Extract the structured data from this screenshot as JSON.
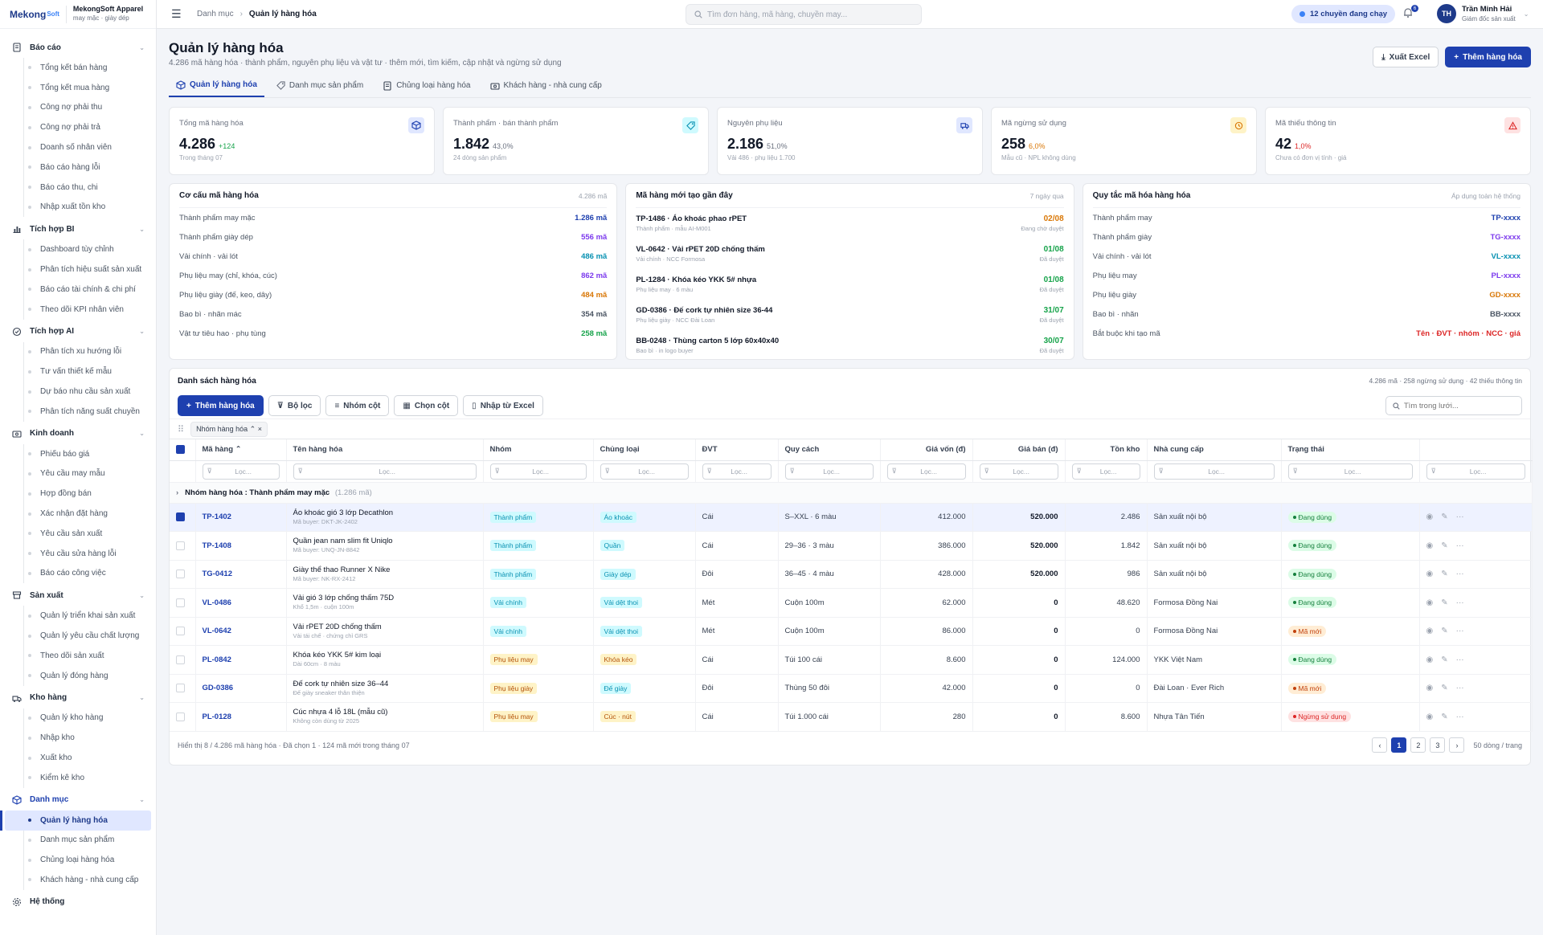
{
  "brand": {
    "logo_main": "Mekong",
    "logo_sub": "Soft",
    "company": "MekongSoft Apparel",
    "tagline": "may mặc · giày dép"
  },
  "sidebar": [
    {
      "label": "Báo cáo",
      "icon": "report-icon",
      "items": [
        "Tổng kết bán hàng",
        "Tổng kết mua hàng",
        "Công nợ phải thu",
        "Công nợ phải trả",
        "Doanh số nhân viên",
        "Báo cáo hàng lỗi",
        "Báo cáo thu, chi",
        "Nhập xuất tồn kho"
      ]
    },
    {
      "label": "Tích hợp BI",
      "icon": "chart-icon",
      "items": [
        "Dashboard tùy chỉnh",
        "Phân tích hiệu suất sản xuất",
        "Báo cáo tài chính & chi phí",
        "Theo dõi KPI nhân viên"
      ]
    },
    {
      "label": "Tích hợp AI",
      "icon": "ai-icon",
      "items": [
        "Phân tích xu hướng lỗi",
        "Tư vấn thiết kế mẫu",
        "Dự báo nhu cầu sản xuất",
        "Phân tích năng suất chuyền"
      ]
    },
    {
      "label": "Kinh doanh",
      "icon": "business-icon",
      "items": [
        "Phiếu báo giá",
        "Yêu cầu may mẫu",
        "Hợp đồng bán",
        "Xác nhận đặt hàng",
        "Yêu cầu sản xuất",
        "Yêu cầu sửa hàng lỗi",
        "Báo cáo công việc"
      ]
    },
    {
      "label": "Sản xuất",
      "icon": "factory-icon",
      "items": [
        "Quản lý triển khai sản xuất",
        "Quản lý yêu cầu chất lượng",
        "Theo dõi sản xuất",
        "Quản lý đóng hàng"
      ]
    },
    {
      "label": "Kho hàng",
      "icon": "warehouse-icon",
      "items": [
        "Quản lý kho hàng",
        "Nhập kho",
        "Xuất kho",
        "Kiểm kê kho"
      ]
    },
    {
      "label": "Danh mục",
      "icon": "box-icon",
      "active": true,
      "items": [
        "Quản lý hàng hóa",
        "Danh mục sản phẩm",
        "Chủng loại hàng hóa",
        "Khách hàng - nhà cung cấp"
      ]
    },
    {
      "label": "Hệ thống",
      "icon": "gear-icon",
      "items": []
    }
  ],
  "topbar": {
    "breadcrumb_root": "Danh mục",
    "breadcrumb_current": "Quản lý hàng hóa",
    "search_placeholder": "Tìm đơn hàng, mã hàng, chuyền may...",
    "trips": "12 chuyền đang chạy",
    "notif_count": "6",
    "user_initials": "TH",
    "user_name": "Trần Minh Hải",
    "user_role": "Giám đốc sản xuất"
  },
  "page": {
    "title": "Quản lý hàng hóa",
    "subtitle": "4.286 mã hàng hóa · thành phẩm, nguyên phụ liệu và vật tư · thêm mới, tìm kiếm, cập nhật và ngừng sử dụng",
    "export": "Xuất Excel",
    "add": "Thêm hàng hóa"
  },
  "tabs": [
    "Quản lý hàng hóa",
    "Danh mục sản phẩm",
    "Chủng loại hàng hóa",
    "Khách hàng - nhà cung cấp"
  ],
  "kpis": [
    {
      "label": "Tổng mã hàng hóa",
      "value": "4.286",
      "delta": "+124",
      "delta_color": "#16a34a",
      "sub": "Trong tháng 07",
      "icon": "box-icon",
      "icon_color": "#1e40af",
      "icon_bg": "#e0e7ff"
    },
    {
      "label": "Thành phẩm · bán thành phẩm",
      "value": "1.842",
      "delta": "43,0%",
      "delta_color": "#6b7280",
      "sub": "24 dòng sản phẩm",
      "icon": "tag-icon",
      "icon_color": "#0891b2",
      "icon_bg": "#cffafe"
    },
    {
      "label": "Nguyên phụ liệu",
      "value": "2.186",
      "delta": "51,0%",
      "delta_color": "#6b7280",
      "sub": "Vải 486 · phụ liệu 1.700",
      "icon": "truck-icon",
      "icon_color": "#1e40af",
      "icon_bg": "#e0e7ff"
    },
    {
      "label": "Mã ngừng sử dụng",
      "value": "258",
      "delta": "6,0%",
      "delta_color": "#d97706",
      "sub": "Mẫu cũ · NPL không dùng",
      "icon": "clock-icon",
      "icon_color": "#d97706",
      "icon_bg": "#fef3c7"
    },
    {
      "label": "Mã thiếu thông tin",
      "value": "42",
      "delta": "1,0%",
      "delta_color": "#dc2626",
      "sub": "Chưa có đơn vị tính · giá",
      "icon": "warning-icon",
      "icon_color": "#dc2626",
      "icon_bg": "#fee2e2"
    }
  ],
  "structure": {
    "title": "Cơ cấu mã hàng hóa",
    "count": "4.286 mã",
    "rows": [
      {
        "label": "Thành phẩm may mặc",
        "value": "1.286 mã",
        "color": "#1e40af"
      },
      {
        "label": "Thành phẩm giày dép",
        "value": "556 mã",
        "color": "#7c3aed"
      },
      {
        "label": "Vải chính · vải lót",
        "value": "486 mã",
        "color": "#0891b2"
      },
      {
        "label": "Phụ liệu may (chỉ, khóa, cúc)",
        "value": "862 mã",
        "color": "#7c3aed"
      },
      {
        "label": "Phụ liệu giày (đế, keo, dây)",
        "value": "484 mã",
        "color": "#d97706"
      },
      {
        "label": "Bao bì · nhãn mác",
        "value": "354 mã",
        "color": "#4b5563"
      },
      {
        "label": "Vật tư tiêu hao · phụ tùng",
        "value": "258 mã",
        "color": "#16a34a"
      }
    ]
  },
  "recent": {
    "title": "Mã hàng mới tạo gần đây",
    "period": "7 ngày qua",
    "rows": [
      {
        "name": "TP-1486 · Áo khoác phao rPET",
        "sub": "Thành phẩm · mẫu AI-M001",
        "date": "02/08",
        "status": "Đang chờ duyệt",
        "color": "#d97706"
      },
      {
        "name": "VL-0642 · Vải rPET 20D chống thấm",
        "sub": "Vải chính · NCC Formosa",
        "date": "01/08",
        "status": "Đã duyệt",
        "color": "#16a34a"
      },
      {
        "name": "PL-1284 · Khóa kéo YKK 5# nhựa",
        "sub": "Phụ liệu may · 6 màu",
        "date": "01/08",
        "status": "Đã duyệt",
        "color": "#16a34a"
      },
      {
        "name": "GD-0386 · Đế cork tự nhiên size 36-44",
        "sub": "Phụ liệu giày · NCC Đài Loan",
        "date": "31/07",
        "status": "Đã duyệt",
        "color": "#16a34a"
      },
      {
        "name": "BB-0248 · Thùng carton 5 lớp 60x40x40",
        "sub": "Bao bì · in logo buyer",
        "date": "30/07",
        "status": "Đã duyệt",
        "color": "#16a34a"
      }
    ]
  },
  "rules": {
    "title": "Quy tắc mã hóa hàng hóa",
    "scope": "Áp dụng toàn hệ thống",
    "rows": [
      {
        "label": "Thành phẩm may",
        "value": "TP-xxxx",
        "color": "#1e40af"
      },
      {
        "label": "Thành phẩm giày",
        "value": "TG-xxxx",
        "color": "#7c3aed"
      },
      {
        "label": "Vải chính · vải lót",
        "value": "VL-xxxx",
        "color": "#0891b2"
      },
      {
        "label": "Phụ liệu may",
        "value": "PL-xxxx",
        "color": "#7c3aed"
      },
      {
        "label": "Phụ liệu giày",
        "value": "GD-xxxx",
        "color": "#d97706"
      },
      {
        "label": "Bao bì · nhãn",
        "value": "BB-xxxx",
        "color": "#4b5563"
      },
      {
        "label": "Bắt buộc khi tạo mã",
        "value": "Tên · ĐVT · nhóm · NCC · giá",
        "color": "#dc2626"
      }
    ]
  },
  "table": {
    "title": "Danh sách hàng hóa",
    "summary": "4.286 mã · 258 ngừng sử dụng · 42 thiếu thông tin",
    "add": "Thêm hàng hóa",
    "filter": "Bộ lọc",
    "group": "Nhóm cột",
    "columns_btn": "Chọn cột",
    "import": "Nhập từ Excel",
    "search_placeholder": "Tìm trong lưới...",
    "chip": "Nhóm hàng hóa",
    "filter_placeholder": "Lọc...",
    "columns": [
      "Mã hàng",
      "Tên hàng hóa",
      "Nhóm",
      "Chủng loại",
      "ĐVT",
      "Quy cách",
      "Giá vốn (đ)",
      "Giá bán (đ)",
      "Tồn kho",
      "Nhà cung cấp",
      "Trạng thái"
    ],
    "group_label": "Nhóm hàng hóa",
    "group_value": "Thành phẩm may mặc",
    "group_count": "(1.286 mã)",
    "rows": [
      {
        "code": "TP-1402",
        "name": "Áo khoác gió 3 lớp Decathlon",
        "sub": "Mã buyer: DKT-JK-2402",
        "group": "Thành phẩm",
        "gc": "#0891b2",
        "gb": "#cffafe",
        "type": "Áo khoác",
        "tc": "#0891b2",
        "tb": "#cffafe",
        "unit": "Cái",
        "spec": "S–XXL · 6 màu",
        "cost": "412.000",
        "price": "520.000",
        "stock": "2.486",
        "supplier": "Sản xuất nội bộ",
        "status": "Đang dùng",
        "sc": "#15803d",
        "sb": "#dcfce7",
        "sel": true
      },
      {
        "code": "TP-1408",
        "name": "Quần jean nam slim fit Uniqlo",
        "sub": "Mã buyer: UNQ-JN-8842",
        "group": "Thành phẩm",
        "gc": "#0891b2",
        "gb": "#cffafe",
        "type": "Quần",
        "tc": "#0891b2",
        "tb": "#cffafe",
        "unit": "Cái",
        "spec": "29–36 · 3 màu",
        "cost": "386.000",
        "price": "520.000",
        "stock": "1.842",
        "supplier": "Sản xuất nội bộ",
        "status": "Đang dùng",
        "sc": "#15803d",
        "sb": "#dcfce7"
      },
      {
        "code": "TG-0412",
        "name": "Giày thể thao Runner X Nike",
        "sub": "Mã buyer: NK-RX-2412",
        "group": "Thành phẩm",
        "gc": "#0891b2",
        "gb": "#cffafe",
        "type": "Giày dép",
        "tc": "#0891b2",
        "tb": "#cffafe",
        "unit": "Đôi",
        "spec": "36–45 · 4 màu",
        "cost": "428.000",
        "price": "520.000",
        "stock": "986",
        "supplier": "Sản xuất nội bộ",
        "status": "Đang dùng",
        "sc": "#15803d",
        "sb": "#dcfce7"
      },
      {
        "code": "VL-0486",
        "name": "Vải gió 3 lớp chống thấm 75D",
        "sub": "Khổ 1,5m · cuộn 100m",
        "group": "Vải chính",
        "gc": "#0891b2",
        "gb": "#cffafe",
        "type": "Vải dệt thoi",
        "tc": "#0891b2",
        "tb": "#cffafe",
        "unit": "Mét",
        "spec": "Cuộn 100m",
        "cost": "62.000",
        "price": "0",
        "stock": "48.620",
        "supplier": "Formosa Đồng Nai",
        "status": "Đang dùng",
        "sc": "#15803d",
        "sb": "#dcfce7"
      },
      {
        "code": "VL-0642",
        "name": "Vải rPET 20D chống thấm",
        "sub": "Vải tái chế · chứng chỉ GRS",
        "group": "Vải chính",
        "gc": "#0891b2",
        "gb": "#cffafe",
        "type": "Vải dệt thoi",
        "tc": "#0891b2",
        "tb": "#cffafe",
        "unit": "Mét",
        "spec": "Cuộn 100m",
        "cost": "86.000",
        "price": "0",
        "stock": "0",
        "supplier": "Formosa Đồng Nai",
        "status": "Mã mới",
        "sc": "#c2410c",
        "sb": "#ffedd5"
      },
      {
        "code": "PL-0842",
        "name": "Khóa kéo YKK 5# kim loại",
        "sub": "Dài 60cm · 8 màu",
        "group": "Phụ liệu may",
        "gc": "#b45309",
        "gb": "#fef3c7",
        "type": "Khóa kéo",
        "tc": "#b45309",
        "tb": "#fef3c7",
        "unit": "Cái",
        "spec": "Túi 100 cái",
        "cost": "8.600",
        "price": "0",
        "stock": "124.000",
        "supplier": "YKK Việt Nam",
        "status": "Đang dùng",
        "sc": "#15803d",
        "sb": "#dcfce7"
      },
      {
        "code": "GD-0386",
        "name": "Đế cork tự nhiên size 36–44",
        "sub": "Đế giày sneaker thân thiện",
        "group": "Phụ liệu giày",
        "gc": "#b45309",
        "gb": "#fef3c7",
        "type": "Đế giày",
        "tc": "#0891b2",
        "tb": "#cffafe",
        "unit": "Đôi",
        "spec": "Thùng 50 đôi",
        "cost": "42.000",
        "price": "0",
        "stock": "0",
        "supplier": "Đài Loan · Ever Rich",
        "status": "Mã mới",
        "sc": "#c2410c",
        "sb": "#ffedd5"
      },
      {
        "code": "PL-0128",
        "name": "Cúc nhựa 4 lỗ 18L (mẫu cũ)",
        "sub": "Không còn dùng từ 2025",
        "group": "Phụ liệu may",
        "gc": "#b45309",
        "gb": "#fef3c7",
        "type": "Cúc · nút",
        "tc": "#b45309",
        "tb": "#fef3c7",
        "unit": "Cái",
        "spec": "Túi 1.000 cái",
        "cost": "280",
        "price": "0",
        "stock": "8.600",
        "supplier": "Nhựa Tân Tiến",
        "status": "Ngừng sử dụng",
        "sc": "#dc2626",
        "sb": "#fee2e2"
      }
    ],
    "footer": "Hiển thị 8 / 4.286 mã hàng hóa · Đã chọn 1 · 124 mã mới trong tháng 07",
    "pages": [
      "1",
      "2",
      "3"
    ],
    "prev": "‹",
    "next": "›",
    "per_page": "50 dòng / trang"
  }
}
